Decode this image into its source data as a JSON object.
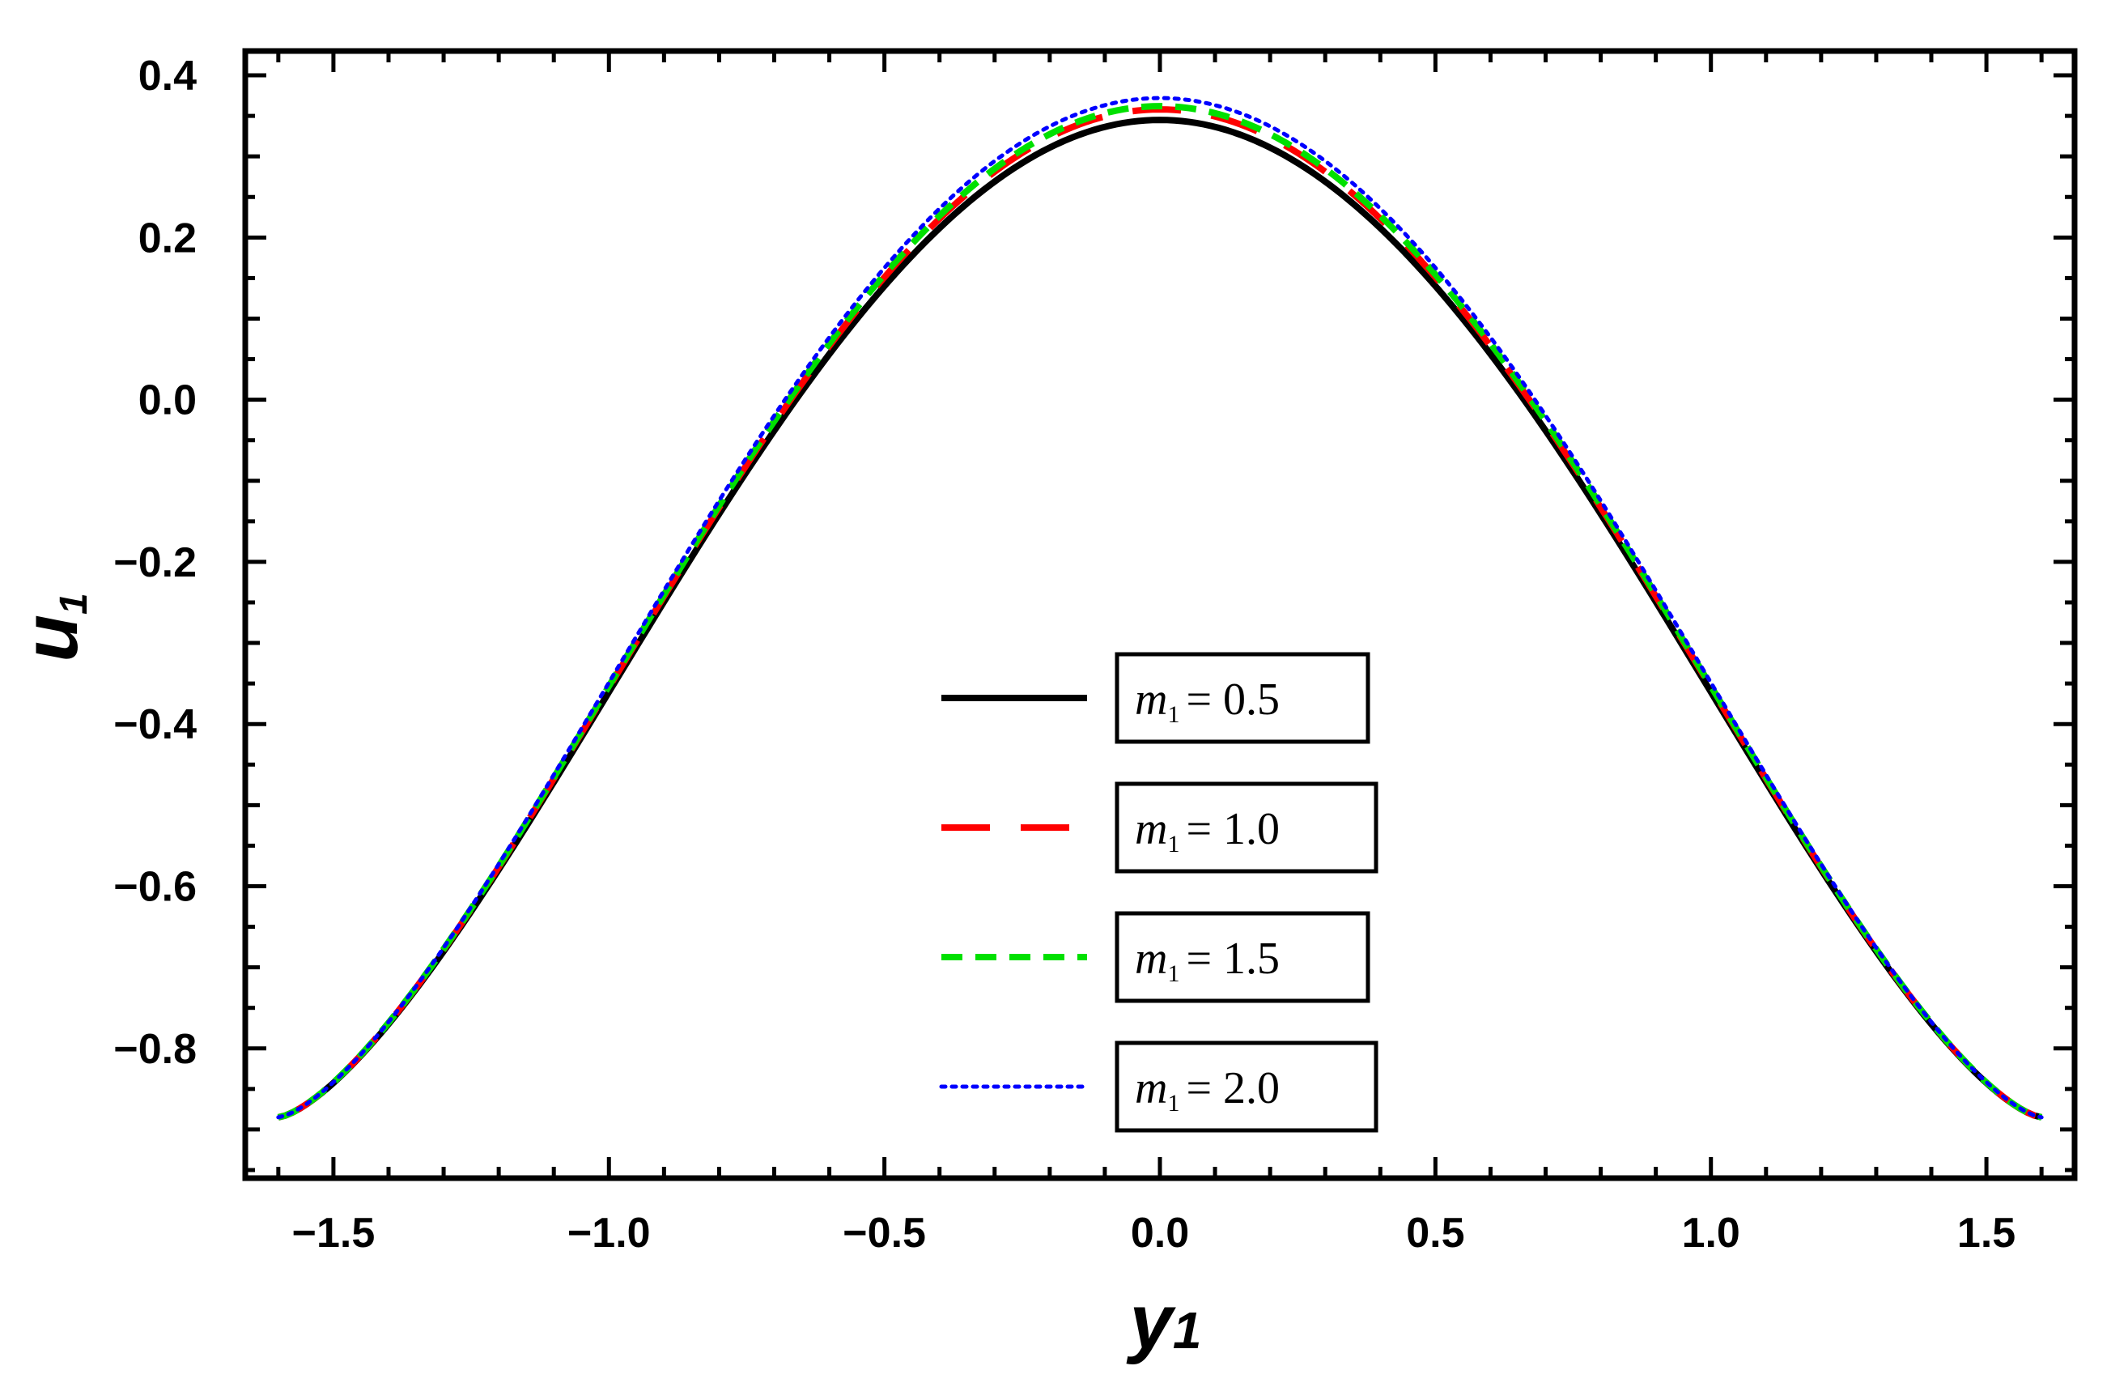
{
  "chart_data": {
    "type": "line",
    "xlabel": "y",
    "xlabel_subscript": "1",
    "ylabel": "u",
    "ylabel_subscript": "1",
    "xlim": [
      -1.66,
      1.66
    ],
    "ylim": [
      -0.96,
      0.43
    ],
    "xticks": [
      -1.5,
      -1.0,
      -0.5,
      0.0,
      0.5,
      1.0,
      1.5
    ],
    "yticks": [
      -0.8,
      -0.6,
      -0.4,
      -0.2,
      0.0,
      0.2,
      0.4
    ],
    "xtick_labels": [
      "−1.5",
      "−1.0",
      "−0.5",
      "0.0",
      "0.5",
      "1.0",
      "1.5"
    ],
    "ytick_labels": [
      "−0.8",
      "−0.6",
      "−0.4",
      "−0.2",
      "0.0",
      "0.2",
      "0.4"
    ],
    "legend_position": "lower-center",
    "series": [
      {
        "name": "m1 = 0.5",
        "legend_symbol": "m",
        "legend_subscript": "1",
        "legend_value": "= 0.5",
        "color": "#000000",
        "dash": "solid",
        "peak": 0.345,
        "end": -0.885,
        "x_range": [
          -1.6,
          1.6
        ]
      },
      {
        "name": "m1 = 1.0",
        "legend_symbol": "m",
        "legend_subscript": "1",
        "legend_value": "= 1.0",
        "color": "#ff0000",
        "dash": "long-dash",
        "peak": 0.358,
        "end": -0.885,
        "x_range": [
          -1.6,
          1.6
        ]
      },
      {
        "name": "m1 = 1.5",
        "legend_symbol": "m",
        "legend_subscript": "1",
        "legend_value": "= 1.5",
        "color": "#00e000",
        "dash": "short-dash",
        "peak": 0.362,
        "end": -0.885,
        "x_range": [
          -1.6,
          1.6
        ]
      },
      {
        "name": "m1 = 2.0",
        "legend_symbol": "m",
        "legend_subscript": "1",
        "legend_value": "= 2.0",
        "color": "#0000ff",
        "dash": "dotted",
        "peak": 0.372,
        "end": -0.885,
        "x_range": [
          -1.6,
          1.6
        ]
      }
    ]
  }
}
